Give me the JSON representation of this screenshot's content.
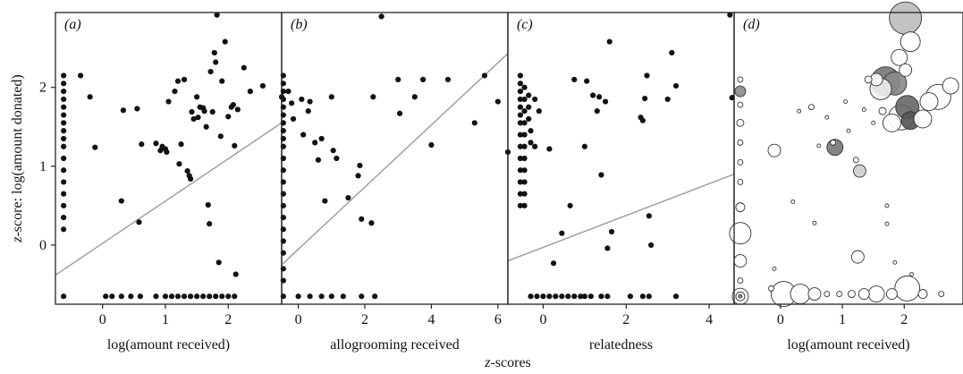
{
  "figure": {
    "y_axis_label_italic": "z",
    "y_axis_label_rest": "-score: log(amount donated)",
    "x_caption_italic": "z",
    "x_caption_rest": "-scores"
  },
  "chart_data": [
    {
      "type": "scatter",
      "panel_label": "(a)",
      "xlabel": "log(amount received)",
      "xlim": [
        -0.75,
        2.85
      ],
      "ylim": [
        -0.75,
        2.95
      ],
      "xticks": [
        0,
        1,
        2
      ],
      "yticks": [
        0,
        1,
        2
      ],
      "trend_line": [
        [
          -0.75,
          -0.38
        ],
        [
          2.85,
          1.55
        ]
      ],
      "points": [
        [
          -0.62,
          2.15
        ],
        [
          -0.62,
          2.05
        ],
        [
          -0.62,
          1.95
        ],
        [
          -0.62,
          1.85
        ],
        [
          -0.62,
          1.75
        ],
        [
          -0.62,
          1.65
        ],
        [
          -0.62,
          1.55
        ],
        [
          -0.62,
          1.45
        ],
        [
          -0.62,
          1.35
        ],
        [
          -0.62,
          1.25
        ],
        [
          -0.62,
          1.1
        ],
        [
          -0.62,
          0.95
        ],
        [
          -0.62,
          0.8
        ],
        [
          -0.62,
          0.65
        ],
        [
          -0.62,
          0.5
        ],
        [
          -0.62,
          0.35
        ],
        [
          -0.62,
          0.2
        ],
        [
          -0.62,
          -0.65
        ],
        [
          -0.35,
          2.15
        ],
        [
          -0.2,
          1.88
        ],
        [
          -0.12,
          1.24
        ],
        [
          0.3,
          0.56
        ],
        [
          0.33,
          1.71
        ],
        [
          0.55,
          1.73
        ],
        [
          0.58,
          0.29
        ],
        [
          0.62,
          1.28
        ],
        [
          0.85,
          1.29
        ],
        [
          0.92,
          1.2
        ],
        [
          0.95,
          1.25
        ],
        [
          1.0,
          1.22
        ],
        [
          1.02,
          1.18
        ],
        [
          1.05,
          1.82
        ],
        [
          1.15,
          1.95
        ],
        [
          1.2,
          2.08
        ],
        [
          1.22,
          1.03
        ],
        [
          1.25,
          1.28
        ],
        [
          1.3,
          2.1
        ],
        [
          1.35,
          0.94
        ],
        [
          1.38,
          0.88
        ],
        [
          1.4,
          0.84
        ],
        [
          1.42,
          1.69
        ],
        [
          1.45,
          1.6
        ],
        [
          1.5,
          1.88
        ],
        [
          1.52,
          1.62
        ],
        [
          1.55,
          1.75
        ],
        [
          1.6,
          1.74
        ],
        [
          1.62,
          1.7
        ],
        [
          1.65,
          1.5
        ],
        [
          1.68,
          0.51
        ],
        [
          1.7,
          0.27
        ],
        [
          1.72,
          2.2
        ],
        [
          1.75,
          1.69
        ],
        [
          1.78,
          2.44
        ],
        [
          1.8,
          2.32
        ],
        [
          1.82,
          2.92
        ],
        [
          1.85,
          -0.22
        ],
        [
          1.88,
          1.38
        ],
        [
          1.9,
          2.08
        ],
        [
          1.95,
          2.58
        ],
        [
          2.0,
          1.63
        ],
        [
          2.05,
          1.75
        ],
        [
          2.08,
          1.78
        ],
        [
          2.1,
          1.26
        ],
        [
          2.12,
          -0.37
        ],
        [
          2.15,
          1.72
        ],
        [
          2.25,
          2.25
        ],
        [
          2.35,
          1.95
        ],
        [
          2.55,
          2.02
        ],
        [
          2.85,
          1.88
        ],
        [
          0.05,
          -0.65
        ],
        [
          0.15,
          -0.65
        ],
        [
          0.3,
          -0.65
        ],
        [
          0.45,
          -0.65
        ],
        [
          0.6,
          -0.65
        ],
        [
          0.85,
          -0.65
        ],
        [
          1.0,
          -0.65
        ],
        [
          1.1,
          -0.65
        ],
        [
          1.2,
          -0.65
        ],
        [
          1.3,
          -0.65
        ],
        [
          1.4,
          -0.65
        ],
        [
          1.5,
          -0.65
        ],
        [
          1.6,
          -0.65
        ],
        [
          1.7,
          -0.65
        ],
        [
          1.8,
          -0.65
        ],
        [
          1.9,
          -0.65
        ],
        [
          2.0,
          -0.65
        ],
        [
          2.1,
          -0.65
        ]
      ]
    },
    {
      "type": "scatter",
      "panel_label": "(b)",
      "xlabel": "allogrooming received",
      "xlim": [
        -0.5,
        6.3
      ],
      "ylim": [
        -0.75,
        2.95
      ],
      "xticks": [
        0,
        2,
        4,
        6
      ],
      "yticks": [],
      "trend_line": [
        [
          -0.5,
          -0.25
        ],
        [
          6.3,
          2.43
        ]
      ],
      "points": [
        [
          -0.45,
          2.15
        ],
        [
          -0.45,
          2.05
        ],
        [
          -0.45,
          1.95
        ],
        [
          -0.45,
          1.85
        ],
        [
          -0.45,
          1.75
        ],
        [
          -0.45,
          1.65
        ],
        [
          -0.45,
          1.55
        ],
        [
          -0.45,
          1.45
        ],
        [
          -0.45,
          1.35
        ],
        [
          -0.45,
          1.25
        ],
        [
          -0.45,
          1.1
        ],
        [
          -0.45,
          0.95
        ],
        [
          -0.45,
          0.8
        ],
        [
          -0.45,
          0.65
        ],
        [
          -0.45,
          0.5
        ],
        [
          -0.45,
          0.35
        ],
        [
          -0.45,
          0.2
        ],
        [
          -0.45,
          0.05
        ],
        [
          -0.45,
          -0.1
        ],
        [
          -0.45,
          -0.3
        ],
        [
          -0.45,
          -0.45
        ],
        [
          -0.45,
          -0.65
        ],
        [
          -0.3,
          1.95
        ],
        [
          -0.2,
          1.8
        ],
        [
          -0.15,
          1.6
        ],
        [
          0.1,
          1.85
        ],
        [
          0.15,
          1.4
        ],
        [
          0.3,
          1.7
        ],
        [
          0.35,
          1.82
        ],
        [
          0.5,
          1.3
        ],
        [
          0.6,
          1.08
        ],
        [
          0.7,
          1.35
        ],
        [
          0.8,
          0.56
        ],
        [
          1.0,
          1.88
        ],
        [
          1.05,
          1.2
        ],
        [
          1.15,
          1.1
        ],
        [
          1.5,
          0.6
        ],
        [
          1.8,
          0.88
        ],
        [
          1.85,
          1.01
        ],
        [
          1.9,
          0.33
        ],
        [
          2.2,
          0.28
        ],
        [
          2.25,
          1.88
        ],
        [
          2.5,
          2.9
        ],
        [
          3.0,
          2.1
        ],
        [
          3.05,
          1.67
        ],
        [
          3.5,
          1.88
        ],
        [
          3.75,
          2.1
        ],
        [
          4.0,
          1.27
        ],
        [
          4.5,
          2.1
        ],
        [
          5.3,
          1.55
        ],
        [
          5.6,
          2.15
        ],
        [
          6.0,
          1.82
        ],
        [
          6.3,
          1.18
        ],
        [
          0.0,
          -0.65
        ],
        [
          0.35,
          -0.65
        ],
        [
          0.7,
          -0.65
        ],
        [
          1.0,
          -0.65
        ],
        [
          1.35,
          -0.65
        ],
        [
          1.9,
          -0.65
        ],
        [
          2.3,
          -0.65
        ]
      ]
    },
    {
      "type": "scatter",
      "panel_label": "(c)",
      "xlabel": "relatedness",
      "xlim": [
        -0.85,
        4.6
      ],
      "ylim": [
        -0.75,
        2.95
      ],
      "xticks": [
        0,
        2,
        4
      ],
      "yticks": [],
      "trend_line": [
        [
          -0.85,
          -0.2
        ],
        [
          4.6,
          0.9
        ]
      ],
      "points": [
        [
          -0.55,
          2.15
        ],
        [
          -0.55,
          2.05
        ],
        [
          -0.55,
          1.95
        ],
        [
          -0.55,
          1.85
        ],
        [
          -0.55,
          1.75
        ],
        [
          -0.55,
          1.65
        ],
        [
          -0.55,
          1.55
        ],
        [
          -0.55,
          1.4
        ],
        [
          -0.55,
          1.25
        ],
        [
          -0.55,
          1.1
        ],
        [
          -0.55,
          0.95
        ],
        [
          -0.55,
          0.8
        ],
        [
          -0.55,
          0.65
        ],
        [
          -0.55,
          0.5
        ],
        [
          -0.45,
          2.0
        ],
        [
          -0.45,
          1.85
        ],
        [
          -0.45,
          1.7
        ],
        [
          -0.45,
          1.55
        ],
        [
          -0.45,
          1.4
        ],
        [
          -0.45,
          1.25
        ],
        [
          -0.45,
          1.1
        ],
        [
          -0.45,
          0.95
        ],
        [
          -0.45,
          0.8
        ],
        [
          -0.45,
          0.65
        ],
        [
          -0.45,
          0.5
        ],
        [
          -0.35,
          1.9
        ],
        [
          -0.35,
          1.75
        ],
        [
          -0.35,
          1.6
        ],
        [
          -0.3,
          1.45
        ],
        [
          -0.3,
          1.3
        ],
        [
          -0.2,
          1.25
        ],
        [
          -0.2,
          1.85
        ],
        [
          -0.1,
          1.7
        ],
        [
          0.15,
          1.22
        ],
        [
          0.25,
          -0.23
        ],
        [
          0.45,
          0.15
        ],
        [
          0.65,
          0.5
        ],
        [
          0.75,
          2.1
        ],
        [
          1.0,
          1.25
        ],
        [
          1.05,
          2.08
        ],
        [
          1.2,
          1.9
        ],
        [
          1.3,
          1.7
        ],
        [
          1.35,
          1.88
        ],
        [
          1.4,
          0.89
        ],
        [
          1.5,
          1.82
        ],
        [
          1.55,
          -0.04
        ],
        [
          1.6,
          2.58
        ],
        [
          1.65,
          0.17
        ],
        [
          2.35,
          1.62
        ],
        [
          2.4,
          1.58
        ],
        [
          2.45,
          1.86
        ],
        [
          2.5,
          2.15
        ],
        [
          2.55,
          0.37
        ],
        [
          2.6,
          0.0
        ],
        [
          3.0,
          1.85
        ],
        [
          3.1,
          2.44
        ],
        [
          3.2,
          2.02
        ],
        [
          4.5,
          2.92
        ],
        [
          4.55,
          1.87
        ],
        [
          -0.3,
          -0.65
        ],
        [
          -0.15,
          -0.65
        ],
        [
          0.0,
          -0.65
        ],
        [
          0.15,
          -0.65
        ],
        [
          0.3,
          -0.65
        ],
        [
          0.45,
          -0.65
        ],
        [
          0.6,
          -0.65
        ],
        [
          0.75,
          -0.65
        ],
        [
          0.9,
          -0.65
        ],
        [
          1.0,
          -0.65
        ],
        [
          1.15,
          -0.65
        ],
        [
          1.4,
          -0.65
        ],
        [
          1.55,
          -0.65
        ],
        [
          2.1,
          -0.65
        ],
        [
          2.4,
          -0.65
        ],
        [
          2.55,
          -0.65
        ],
        [
          3.2,
          -0.65
        ]
      ]
    },
    {
      "type": "bubble",
      "panel_label": "(d)",
      "xlabel": "log(amount received)",
      "xlim": [
        -0.75,
        2.95
      ],
      "ylim": [
        -0.75,
        2.95
      ],
      "xticks": [
        0,
        1,
        2
      ],
      "yticks": [],
      "bubbles": [
        [
          2.02,
          2.88,
          18,
          "#bbbbbb"
        ],
        [
          2.1,
          2.58,
          11,
          "#ffffff"
        ],
        [
          1.92,
          2.38,
          9,
          "#ffffff"
        ],
        [
          2.02,
          2.22,
          7,
          "#ffffff"
        ],
        [
          1.7,
          2.08,
          16,
          "#777777"
        ],
        [
          1.85,
          2.05,
          13,
          "#888888"
        ],
        [
          1.55,
          2.1,
          7,
          "#ffffff"
        ],
        [
          1.62,
          1.98,
          12,
          "#eeeeee"
        ],
        [
          1.42,
          2.1,
          4,
          "#ffffff"
        ],
        [
          2.55,
          1.88,
          14,
          "#ffffff"
        ],
        [
          2.75,
          2.02,
          9,
          "#ffffff"
        ],
        [
          2.05,
          1.75,
          13,
          "#666666"
        ],
        [
          2.1,
          1.58,
          10,
          "#555555"
        ],
        [
          1.8,
          1.55,
          10,
          "#ffffff"
        ],
        [
          1.95,
          1.62,
          14,
          "#ffffff"
        ],
        [
          2.3,
          1.6,
          10,
          "#ffffff"
        ],
        [
          2.4,
          1.82,
          10,
          "#ffffff"
        ],
        [
          1.65,
          1.7,
          4,
          "#ffffff"
        ],
        [
          0.88,
          1.24,
          9,
          "#777777"
        ],
        [
          -0.1,
          1.2,
          7,
          "#ffffff"
        ],
        [
          1.28,
          0.94,
          7,
          "#cccccc"
        ],
        [
          1.22,
          1.08,
          3,
          "#ffffff"
        ],
        [
          0.62,
          1.26,
          2,
          "#ffffff"
        ],
        [
          0.85,
          1.3,
          3,
          "#ffffff"
        ],
        [
          1.35,
          1.72,
          2,
          "#ffffff"
        ],
        [
          1.5,
          1.55,
          2,
          "#ffffff"
        ],
        [
          1.1,
          1.45,
          2,
          "#ffffff"
        ],
        [
          1.05,
          1.82,
          2,
          "#ffffff"
        ],
        [
          0.5,
          1.75,
          3,
          "#ffffff"
        ],
        [
          0.3,
          1.7,
          2,
          "#ffffff"
        ],
        [
          0.75,
          1.62,
          2,
          "#ffffff"
        ],
        [
          1.25,
          -0.15,
          7,
          "#ffffff"
        ],
        [
          1.85,
          -0.22,
          2,
          "#ffffff"
        ],
        [
          1.72,
          0.27,
          2,
          "#ffffff"
        ],
        [
          2.12,
          -0.37,
          2,
          "#ffffff"
        ],
        [
          0.55,
          0.28,
          2,
          "#ffffff"
        ],
        [
          1.72,
          0.5,
          2,
          "#ffffff"
        ],
        [
          0.2,
          0.55,
          2,
          "#ffffff"
        ],
        [
          -0.65,
          0.15,
          12,
          "#ffffff"
        ],
        [
          -0.65,
          0.48,
          5,
          "#ffffff"
        ],
        [
          -0.65,
          0.8,
          3,
          "#ffffff"
        ],
        [
          -0.65,
          1.05,
          3,
          "#ffffff"
        ],
        [
          -0.65,
          1.3,
          3,
          "#ffffff"
        ],
        [
          -0.65,
          1.55,
          4,
          "#ffffff"
        ],
        [
          -0.65,
          1.78,
          3,
          "#ffffff"
        ],
        [
          -0.65,
          1.95,
          6,
          "#888888"
        ],
        [
          -0.65,
          2.1,
          3,
          "#ffffff"
        ],
        [
          -0.65,
          -0.2,
          7,
          "#ffffff"
        ],
        [
          -0.65,
          -0.45,
          3,
          "#ffffff"
        ],
        [
          -0.65,
          -0.65,
          9,
          "#ffffff"
        ],
        [
          -0.65,
          -0.65,
          5,
          "#ffffff"
        ],
        [
          -0.65,
          -0.65,
          2,
          "#888888"
        ],
        [
          -0.15,
          -0.55,
          3,
          "#ffffff"
        ],
        [
          0.05,
          -0.62,
          14,
          "#ffffff"
        ],
        [
          0.32,
          -0.62,
          11,
          "#ffffff"
        ],
        [
          0.55,
          -0.62,
          7,
          "#ffffff"
        ],
        [
          0.75,
          -0.62,
          3,
          "#ffffff"
        ],
        [
          0.95,
          -0.62,
          3,
          "#ffffff"
        ],
        [
          1.15,
          -0.62,
          4,
          "#ffffff"
        ],
        [
          1.35,
          -0.62,
          6,
          "#ffffff"
        ],
        [
          1.55,
          -0.62,
          9,
          "#ffffff"
        ],
        [
          1.8,
          -0.62,
          6,
          "#ffffff"
        ],
        [
          2.05,
          -0.55,
          14,
          "#ffffff"
        ],
        [
          2.3,
          -0.62,
          5,
          "#ffffff"
        ],
        [
          2.6,
          -0.62,
          3,
          "#ffffff"
        ],
        [
          -0.1,
          -0.3,
          2,
          "#ffffff"
        ]
      ]
    }
  ]
}
